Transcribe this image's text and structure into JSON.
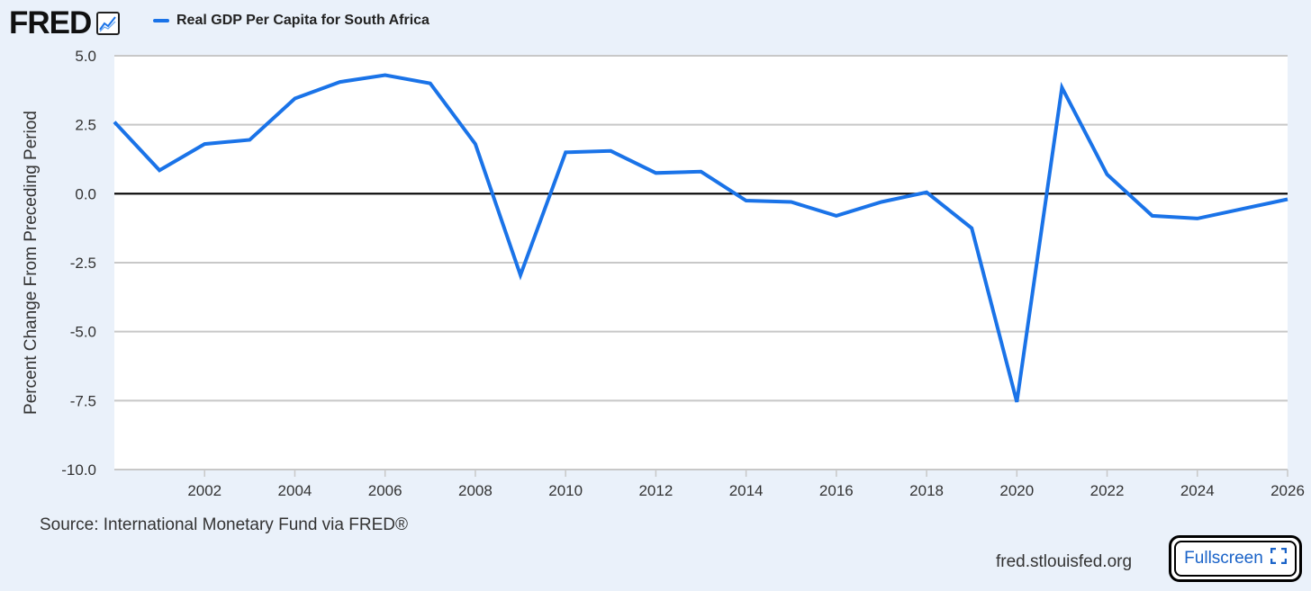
{
  "header": {
    "logo": "FRED",
    "logo_icon": "line-chart-icon",
    "legend_label": "Real GDP Per Capita for South Africa"
  },
  "colors": {
    "series": "#1a73e8",
    "zero_line": "#000000",
    "grid": "#c8c8c8",
    "plot_bg": "#ffffff",
    "page_bg": "#eaf1fa",
    "link": "#1a63c8"
  },
  "chart_data": {
    "type": "line",
    "title": "Real GDP Per Capita for South Africa",
    "xlabel": "",
    "ylabel": "Percent Change From Preceding Period",
    "xlim": [
      2000,
      2026
    ],
    "ylim": [
      -10,
      5
    ],
    "yticks": [
      5.0,
      2.5,
      0.0,
      -2.5,
      -5.0,
      -7.5,
      -10.0
    ],
    "ytick_labels": [
      "5.0",
      "2.5",
      "0.0",
      "-2.5",
      "-5.0",
      "-7.5",
      "-10.0"
    ],
    "xticks": [
      2002,
      2004,
      2006,
      2008,
      2010,
      2012,
      2014,
      2016,
      2018,
      2020,
      2022,
      2024,
      2026
    ],
    "xtick_labels": [
      "2002",
      "2004",
      "2006",
      "2008",
      "2010",
      "2012",
      "2014",
      "2016",
      "2018",
      "2020",
      "2022",
      "2024",
      "2026"
    ],
    "grid": true,
    "series": [
      {
        "name": "Real GDP Per Capita for South Africa",
        "x": [
          2000,
          2001,
          2002,
          2003,
          2004,
          2005,
          2006,
          2007,
          2008,
          2009,
          2010,
          2011,
          2012,
          2013,
          2014,
          2015,
          2016,
          2017,
          2018,
          2019,
          2020,
          2021,
          2022,
          2023,
          2024,
          2025,
          2026
        ],
        "values": [
          2.6,
          0.85,
          1.8,
          1.95,
          3.45,
          4.05,
          4.3,
          4.0,
          1.8,
          -2.95,
          1.5,
          1.55,
          0.75,
          0.8,
          -0.25,
          -0.3,
          -0.8,
          -0.3,
          0.05,
          -1.25,
          -7.55,
          3.85,
          0.7,
          -0.8,
          -0.9,
          -0.55,
          -0.2
        ]
      }
    ]
  },
  "footer": {
    "source": "Source: International Monetary Fund via FRED®",
    "site": "fred.stlouisfed.org",
    "fullscreen_label": "Fullscreen",
    "fullscreen_icon": "fullscreen-icon"
  }
}
